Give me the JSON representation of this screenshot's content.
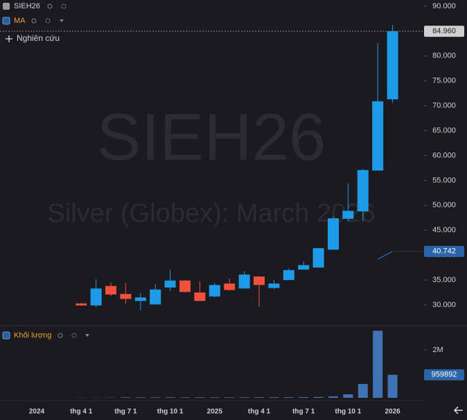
{
  "chart_data": {
    "type": "candlestick",
    "watermark": "SIEH26",
    "watermark_subtitle": "Silver (Globex): March 2026",
    "study_button": "Nghiên cứu",
    "categories": [
      "2024",
      null,
      null,
      "thg 4 1",
      null,
      null,
      "thg 7 1",
      null,
      null,
      "thg 10 1",
      null,
      null,
      "2025",
      null,
      null,
      "thg 4 1",
      null,
      null,
      "thg 7 1",
      null,
      null,
      "thg 10 1",
      null,
      null,
      "2026"
    ],
    "series": [
      {
        "name": "SIEH26",
        "up_color": "#1e9be8",
        "down_color": "#f0503c",
        "open": [
          null,
          null,
          null,
          30.3,
          29.9,
          33.8,
          32.2,
          30.8,
          30.1,
          33.5,
          34.9,
          32.5,
          31.7,
          34.3,
          33.3,
          35.7,
          33.4,
          35.0,
          37.1,
          37.5,
          41.1,
          47.3,
          48.8,
          57.0,
          71.3
        ],
        "high": [
          null,
          null,
          null,
          30.4,
          35.2,
          34.5,
          34.4,
          32.4,
          34.2,
          37.1,
          35.0,
          34.7,
          34.4,
          35.3,
          36.8,
          35.8,
          35.0,
          37.3,
          38.7,
          41.4,
          47.8,
          54.4,
          57.3,
          82.6,
          86.2
        ],
        "low": [
          null,
          null,
          null,
          29.8,
          29.6,
          31.8,
          30.3,
          29.0,
          30.0,
          32.8,
          32.5,
          30.8,
          31.5,
          32.9,
          33.3,
          29.6,
          33.2,
          35.0,
          37.1,
          37.5,
          41.1,
          46.8,
          46.8,
          57.0,
          70.6
        ],
        "close": [
          null,
          null,
          null,
          29.9,
          33.3,
          32.1,
          31.2,
          31.5,
          33.1,
          34.9,
          32.6,
          30.8,
          34.0,
          33.0,
          36.1,
          34.0,
          34.3,
          37.0,
          38.0,
          41.4,
          47.4,
          48.9,
          57.1,
          70.9,
          84.96
        ]
      },
      {
        "name": "MA",
        "color": "#3b7be0",
        "values": [
          null,
          null,
          null,
          null,
          null,
          null,
          null,
          null,
          null,
          null,
          null,
          null,
          null,
          null,
          null,
          null,
          null,
          null,
          null,
          null,
          null,
          null,
          null,
          39.2,
          40.742
        ]
      }
    ],
    "last_price": {
      "value": 84.96,
      "label": "84.960"
    },
    "ylim": [
      25.82,
      91.25
    ],
    "yticks": [
      {
        "value": 30,
        "label": "30.000"
      },
      {
        "value": 35,
        "label": "35.000"
      },
      {
        "value": 40,
        "label": "40.000"
      },
      {
        "value": 45,
        "label": "45.000"
      },
      {
        "value": 50,
        "label": "50.000"
      },
      {
        "value": 55,
        "label": "55.000"
      },
      {
        "value": 60,
        "label": "60.000"
      },
      {
        "value": 65,
        "label": "65.000"
      },
      {
        "value": 70,
        "label": "70.000"
      },
      {
        "value": 75,
        "label": "75.000"
      },
      {
        "value": 80,
        "label": "80.000"
      },
      {
        "value": 85,
        "label": "85.000"
      },
      {
        "value": 90,
        "label": "90.000"
      }
    ],
    "volume": {
      "type": "bar",
      "name": "Khối lượng",
      "color": "#3f73b3",
      "values": [
        null,
        null,
        null,
        5000,
        6000,
        7000,
        20000,
        18000,
        20000,
        22000,
        20000,
        22000,
        21000,
        20000,
        22000,
        25000,
        24000,
        26000,
        28000,
        35000,
        60000,
        145000,
        578000,
        2800000,
        959892
      ],
      "ylim": [
        0,
        2950000
      ],
      "yticks": [
        {
          "value": 2000000,
          "label": "2M"
        }
      ]
    }
  }
}
